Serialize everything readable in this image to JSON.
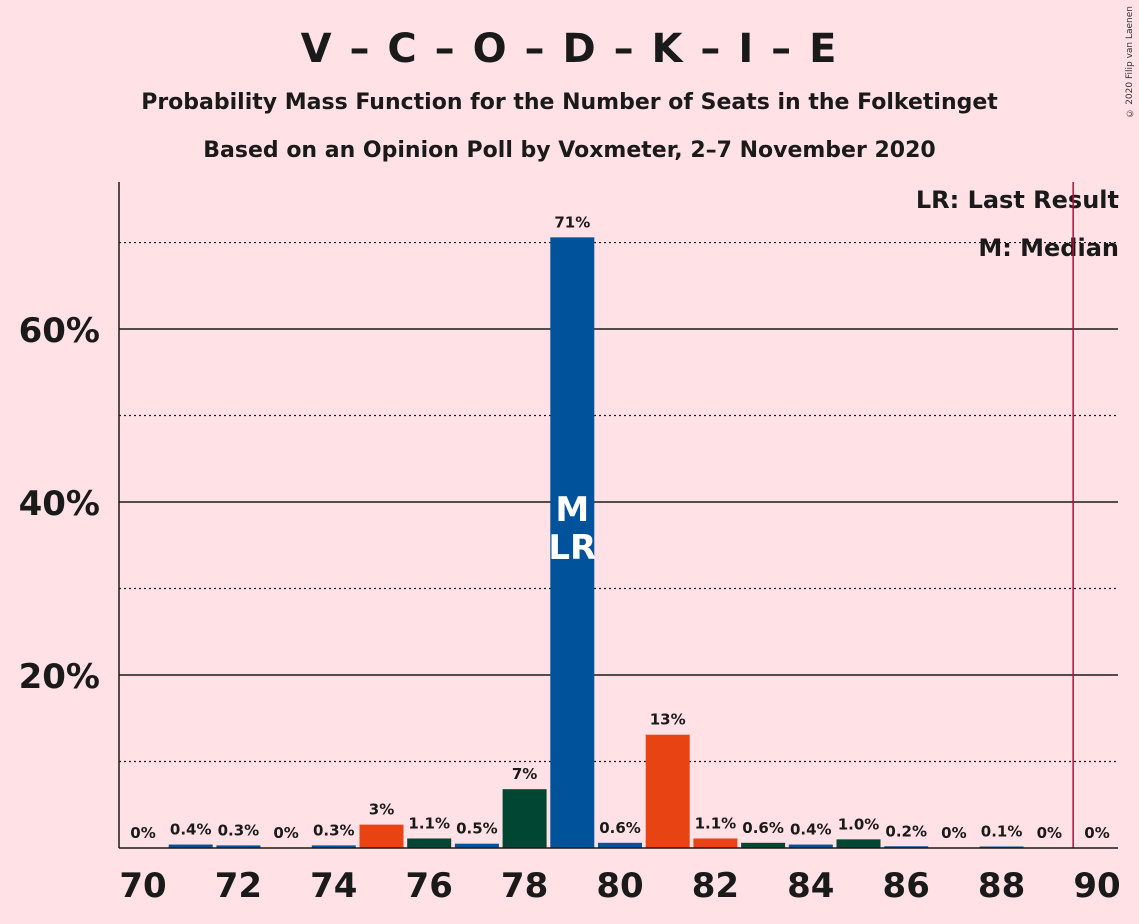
{
  "title": "V – C – O – D – K – I – E",
  "subtitle_1": "Probability Mass Function for the Number of Seats in the Folketinget",
  "subtitle_2": "Based on an Opinion Poll by Voxmeter, 2–7 November 2020",
  "copyright": "© 2020 Filip van Laenen",
  "legend": {
    "last_result": "LR: Last Result",
    "median": "M: Median"
  },
  "colors": {
    "background": "#FFE1E6",
    "axis": "#1a1a1a",
    "majority_line": "#B0103A",
    "bar_colors": [
      "#00539B",
      "#E84313",
      "#004632"
    ]
  },
  "chart_data": {
    "type": "bar",
    "x": [
      70,
      71,
      72,
      73,
      74,
      75,
      76,
      77,
      78,
      79,
      80,
      81,
      82,
      83,
      84,
      85,
      86,
      87,
      88,
      89,
      90
    ],
    "values": [
      0,
      0.4,
      0.3,
      0,
      0.3,
      2.7,
      1.1,
      0.5,
      6.8,
      70.6,
      0.6,
      13.1,
      1.1,
      0.6,
      0.4,
      1.0,
      0.2,
      0,
      0.1,
      0,
      0
    ],
    "data_labels": [
      "0%",
      "0.4%",
      "0.3%",
      "0%",
      "0.3%",
      "3%",
      "1.1%",
      "0.5%",
      "7%",
      "71%",
      "0.6%",
      "13%",
      "1.1%",
      "0.6%",
      "0.4%",
      "1.0%",
      "0.2%",
      "0%",
      "0.1%",
      "0%",
      "0%"
    ],
    "bar_colors": [
      "#00539B",
      "#00539B",
      "#00539B",
      "#00539B",
      "#00539B",
      "#E84313",
      "#004632",
      "#00539B",
      "#004632",
      "#00539B",
      "#00539B",
      "#E84313",
      "#E84313",
      "#004632",
      "#00539B",
      "#004632",
      "#00539B",
      "#00539B",
      "#00539B",
      "#00539B",
      "#00539B"
    ],
    "x_ticks": [
      70,
      72,
      74,
      76,
      78,
      80,
      82,
      84,
      86,
      88,
      90
    ],
    "y_ticks": [
      20,
      40,
      60
    ],
    "y_tick_labels": [
      "20%",
      "40%",
      "60%"
    ],
    "y_minor_ticks": [
      10,
      30,
      50,
      70
    ],
    "ylim": [
      0,
      77
    ],
    "median_seat": 79,
    "last_result_seat": 79,
    "bar_markers": [
      "M",
      "LR"
    ],
    "majority_line_x": 89.5,
    "legend_position": "top-right",
    "grid": true
  }
}
